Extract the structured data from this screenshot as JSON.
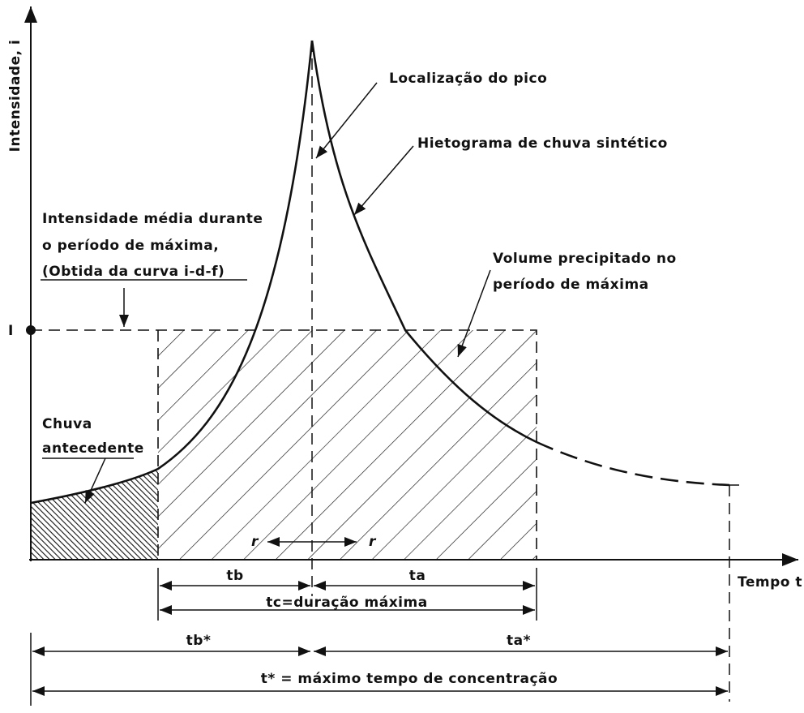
{
  "axes": {
    "y_label": "Intensidade, i",
    "x_label": "Tempo t",
    "level_label": "I"
  },
  "annotations": {
    "peak": "Localização do pico",
    "hyetograph": "Hietograma de chuva sintético",
    "mean_intensity": [
      "Intensidade média durante",
      "o período de máxima,",
      "(Obtida da curva i-d-f)"
    ],
    "volume": [
      "Volume precipitado no",
      "período de máxima"
    ],
    "antecedent": [
      "Chuva",
      "antecedente"
    ],
    "r_left": "r",
    "r_right": "r"
  },
  "dimensions": {
    "tb": "tb",
    "ta": "ta",
    "tc": "tc=duração máxima",
    "tb_star": "tb*",
    "ta_star": "ta*",
    "t_star": "t* = máximo tempo de concentração"
  }
}
